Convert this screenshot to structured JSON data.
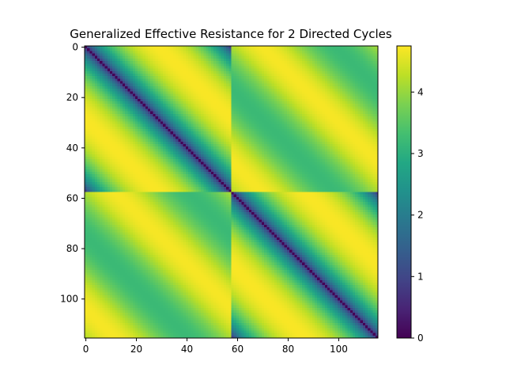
{
  "chart_data": {
    "type": "heatmap",
    "title": "Generalized Effective Resistance for 2 Directed Cycles",
    "xlabel": "",
    "ylabel": "",
    "n": 116,
    "cycle_length": 58,
    "x_ticks": [
      0,
      20,
      40,
      60,
      80,
      100
    ],
    "y_ticks": [
      0,
      20,
      40,
      60,
      80,
      100
    ],
    "xlim": [
      -0.5,
      115.5
    ],
    "ylim": [
      115.5,
      -0.5
    ],
    "colorbar": {
      "colormap": "viridis",
      "range": [
        0,
        4.75
      ],
      "ticks": [
        0,
        1,
        2,
        3,
        4
      ]
    },
    "grid": false,
    "description_of_values": "Diagonal is 0; within each 58-node block the value rises to about 4.7 away from the diagonal; off-diagonal blocks range about 3.0-4.7."
  }
}
